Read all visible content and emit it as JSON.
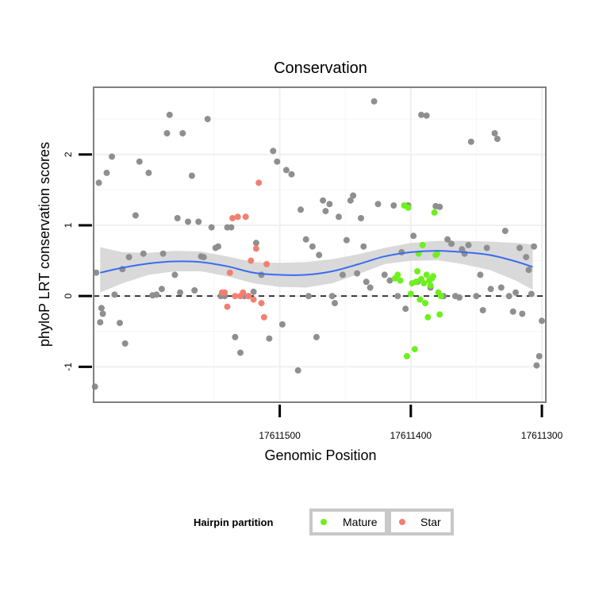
{
  "chart_data": {
    "type": "scatter",
    "title": "Conservation",
    "xlabel": "Genomic Position",
    "ylabel": "phyloP LRT conservation scores",
    "x_reversed": true,
    "xlim": [
      17611642,
      17611297
    ],
    "ylim": [
      -1.5,
      2.95
    ],
    "x_ticks": [
      17611500,
      17611400,
      17611300
    ],
    "x_tick_labels": [
      "17611500",
      "17611400",
      "17611300"
    ],
    "y_ticks": [
      -1,
      0,
      1,
      2
    ],
    "y_tick_labels": [
      "-1",
      "0",
      "1",
      "2"
    ],
    "grid": true,
    "reference_line": {
      "y": 0,
      "style": "dashed"
    },
    "colors": {
      "other": "#8f8f8f",
      "Mature": "#6ef01e",
      "Star": "#f28072",
      "smooth": "#3a6cf0",
      "band": "#d2d2d2"
    },
    "legend": {
      "title": "Hairpin partition",
      "position": "bottom",
      "entries": [
        {
          "label": "Mature",
          "color": "#6ef01e"
        },
        {
          "label": "Star",
          "color": "#f28072"
        }
      ]
    },
    "smooth": {
      "x": [
        17611637,
        17611620,
        17611600,
        17611580,
        17611560,
        17611540,
        17611520,
        17611500,
        17611480,
        17611460,
        17611440,
        17611420,
        17611400,
        17611380,
        17611360,
        17611340,
        17611320,
        17611307
      ],
      "y": [
        0.33,
        0.4,
        0.46,
        0.49,
        0.48,
        0.42,
        0.33,
        0.3,
        0.3,
        0.35,
        0.45,
        0.56,
        0.62,
        0.64,
        0.62,
        0.58,
        0.49,
        0.41
      ],
      "lower": [
        0.05,
        0.18,
        0.3,
        0.35,
        0.35,
        0.28,
        0.18,
        0.13,
        0.12,
        0.18,
        0.31,
        0.45,
        0.5,
        0.51,
        0.45,
        0.37,
        0.22,
        0.09
      ],
      "upper": [
        0.69,
        0.62,
        0.61,
        0.64,
        0.63,
        0.56,
        0.48,
        0.47,
        0.48,
        0.52,
        0.59,
        0.68,
        0.75,
        0.78,
        0.78,
        0.77,
        0.75,
        0.73
      ]
    },
    "series": [
      {
        "name": "other",
        "x": [
          17611641,
          17611637,
          17611640,
          17611638,
          17611635,
          17611636,
          17611632,
          17611628,
          17611626,
          17611622,
          17611620,
          17611618,
          17611615,
          17611610,
          17611607,
          17611604,
          17611600,
          17611597,
          17611594,
          17611590,
          17611589,
          17611586,
          17611584,
          17611580,
          17611578,
          17611576,
          17611574,
          17611570,
          17611567,
          17611565,
          17611562,
          17611560,
          17611558,
          17611555,
          17611552,
          17611549,
          17611547,
          17611545,
          17611542,
          17611540,
          17611537,
          17611534,
          17611530,
          17611527,
          17611524,
          17611520,
          17611518,
          17611514,
          17611508,
          17611505,
          17611502,
          17611498,
          17611495,
          17611491,
          17611486,
          17611484,
          17611480,
          17611478,
          17611475,
          17611472,
          17611470,
          17611467,
          17611465,
          17611462,
          17611460,
          17611458,
          17611455,
          17611452,
          17611449,
          17611446,
          17611444,
          17611441,
          17611438,
          17611436,
          17611434,
          17611431,
          17611428,
          17611425,
          17611420,
          17611416,
          17611413,
          17611410,
          17611407,
          17611404,
          17611402,
          17611398,
          17611395,
          17611392,
          17611388,
          17611385,
          17611381,
          17611378,
          17611375,
          17611372,
          17611369,
          17611366,
          17611363,
          17611361,
          17611359,
          17611356,
          17611354,
          17611350,
          17611347,
          17611345,
          17611342,
          17611339,
          17611336,
          17611334,
          17611331,
          17611328,
          17611325,
          17611322,
          17611320,
          17611317,
          17611315,
          17611312,
          17611310,
          17611308,
          17611306,
          17611304,
          17611302,
          17611300
        ],
        "y": [
          -1.28,
          -0.37,
          0.33,
          1.6,
          -0.25,
          -0.17,
          1.74,
          1.97,
          0.02,
          -0.38,
          0.38,
          -0.67,
          0.55,
          1.14,
          1.9,
          0.6,
          1.74,
          0.01,
          0.02,
          0.1,
          0.6,
          2.3,
          2.56,
          0.3,
          1.1,
          0.05,
          2.3,
          1.05,
          1.7,
          0.08,
          1.05,
          0.56,
          0.55,
          2.5,
          0.97,
          0.68,
          0.7,
          0.0,
          0.0,
          0.97,
          0.97,
          -0.58,
          -0.8,
          0.0,
          0.0,
          0.06,
          0.75,
          0.3,
          -0.6,
          2.05,
          1.9,
          -0.4,
          1.78,
          1.72,
          -1.05,
          1.22,
          0.8,
          0.0,
          0.7,
          -0.58,
          0.58,
          1.35,
          1.2,
          1.3,
          0.0,
          -0.1,
          1.12,
          0.3,
          0.79,
          1.35,
          1.42,
          0.32,
          1.1,
          0.7,
          0.2,
          0.12,
          2.75,
          1.3,
          0.3,
          0.22,
          1.28,
          0.0,
          0.62,
          -0.18,
          1.28,
          0.85,
          0.2,
          2.56,
          2.55,
          0.12,
          1.27,
          1.26,
          0.0,
          0.8,
          0.74,
          0.0,
          -0.02,
          0.66,
          0.6,
          0.72,
          2.18,
          0.0,
          0.3,
          -0.2,
          0.68,
          0.1,
          2.3,
          2.22,
          0.12,
          0.92,
          0.0,
          -0.22,
          0.05,
          0.68,
          -0.25,
          0.55,
          0.37,
          0.03,
          0.7,
          -0.98,
          -0.85,
          -0.35
        ],
        "color": "#8f8f8f"
      },
      {
        "name": "Mature",
        "x": [
          17611412,
          17611410,
          17611408,
          17611405,
          17611403,
          17611402,
          17611400,
          17611399,
          17611397,
          17611396,
          17611395,
          17611394,
          17611393,
          17611392,
          17611391,
          17611390,
          17611389,
          17611388,
          17611387,
          17611386,
          17611385,
          17611384,
          17611383,
          17611382,
          17611381,
          17611380,
          17611379,
          17611378,
          17611377
        ],
        "y": [
          0.25,
          0.3,
          0.22,
          1.28,
          -0.85,
          1.25,
          0.03,
          0.18,
          -0.75,
          0.2,
          0.35,
          0.6,
          -0.05,
          0.24,
          0.72,
          0.18,
          -0.1,
          0.3,
          -0.3,
          0.22,
          0.15,
          0.25,
          0.28,
          1.18,
          0.58,
          0.6,
          0.05,
          -0.26,
          0.0
        ],
        "color": "#6ef01e"
      },
      {
        "name": "Star",
        "x": [
          17611544,
          17611542,
          17611540,
          17611538,
          17611536,
          17611534,
          17611532,
          17611530,
          17611528,
          17611526,
          17611524,
          17611522,
          17611520,
          17611518,
          17611516,
          17611514,
          17611512,
          17611510
        ],
        "y": [
          0.05,
          0.05,
          -0.15,
          0.33,
          1.1,
          0.0,
          1.12,
          0.0,
          0.05,
          1.12,
          0.0,
          0.5,
          -0.05,
          0.67,
          1.6,
          -0.1,
          -0.3,
          0.45
        ],
        "color": "#f28072"
      }
    ]
  }
}
